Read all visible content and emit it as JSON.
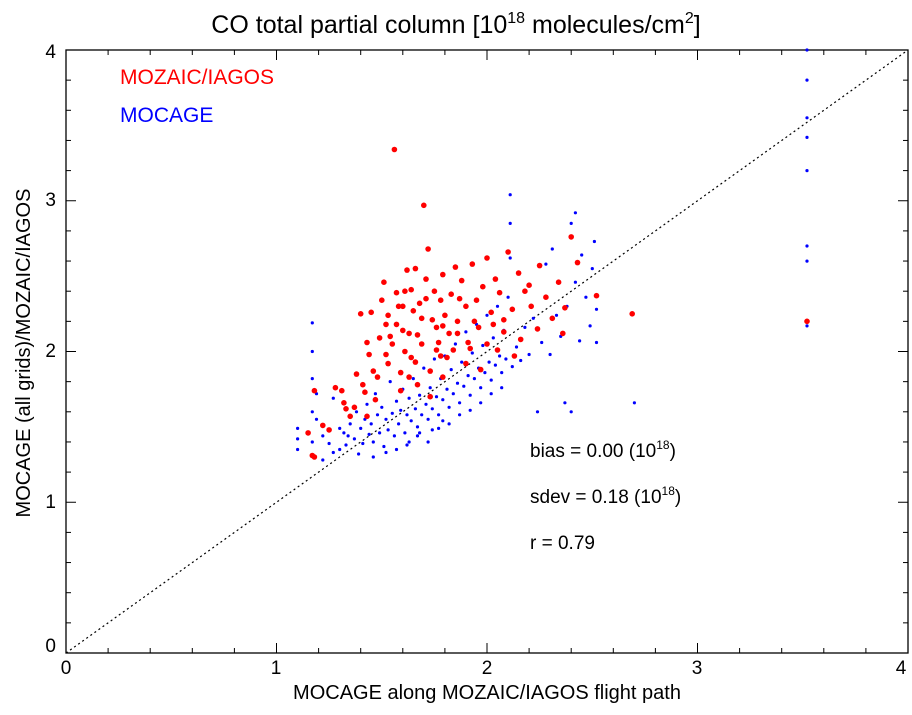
{
  "chart_data": {
    "type": "scatter",
    "title": {
      "prefix": "CO total partial column [10",
      "sup1": "18",
      "middle": " molecules/cm",
      "sup2": "2",
      "suffix": "]"
    },
    "xlabel": "MOCAGE along MOZAIC/IAGOS flight path",
    "ylabel": "MOCAGE (all grids)/MOZAIC/IAGOS",
    "xlim": [
      0,
      4
    ],
    "ylim": [
      0,
      4
    ],
    "xticks": [
      "0",
      "1",
      "2",
      "3",
      "4"
    ],
    "yticks": [
      "0",
      "1",
      "2",
      "3",
      "4"
    ],
    "grid": false,
    "legend_position": "top-left",
    "reference_line": "1:1 dotted diagonal",
    "colors": {
      "mozaic": "#ff0000",
      "mocage": "#0000ff",
      "axis": "#000000"
    },
    "legend": [
      {
        "label": "MOZAIC/IAGOS",
        "color": "#ff0000"
      },
      {
        "label": "MOCAGE",
        "color": "#0000ff"
      }
    ],
    "annotations": {
      "bias": {
        "text": "bias = 0.00 (10",
        "sup": "18",
        "close": ")"
      },
      "sdev": {
        "text": "sdev = 0.18 (10",
        "sup": "18",
        "close": ")"
      },
      "r": {
        "text": "r = 0.79"
      }
    },
    "series": [
      {
        "name": "MOZAIC/IAGOS",
        "color": "#ff0000",
        "marker": "filled-circle",
        "points": [
          [
            1.17,
            1.31
          ],
          [
            1.18,
            1.3
          ],
          [
            1.15,
            1.46
          ],
          [
            1.18,
            1.74
          ],
          [
            1.22,
            1.51
          ],
          [
            1.28,
            1.76
          ],
          [
            1.31,
            1.74
          ],
          [
            1.33,
            1.62
          ],
          [
            1.35,
            1.57
          ],
          [
            1.38,
            1.85
          ],
          [
            1.4,
            2.25
          ],
          [
            1.41,
            1.78
          ],
          [
            1.43,
            2.06
          ],
          [
            1.44,
            1.98
          ],
          [
            1.45,
            2.26
          ],
          [
            1.47,
            1.68
          ],
          [
            1.49,
            2.09
          ],
          [
            1.5,
            2.34
          ],
          [
            1.51,
            2.46
          ],
          [
            1.52,
            2.18
          ],
          [
            1.53,
            1.92
          ],
          [
            1.55,
            2.05
          ],
          [
            1.56,
            3.34
          ],
          [
            1.57,
            2.39
          ],
          [
            1.58,
            2.3
          ],
          [
            1.59,
            1.86
          ],
          [
            1.6,
            2.14
          ],
          [
            1.61,
            2.4
          ],
          [
            1.62,
            2.54
          ],
          [
            1.63,
            2.12
          ],
          [
            1.64,
            1.96
          ],
          [
            1.65,
            2.27
          ],
          [
            1.66,
            2.55
          ],
          [
            1.67,
            1.78
          ],
          [
            1.68,
            2.32
          ],
          [
            1.69,
            2.05
          ],
          [
            1.7,
            2.97
          ],
          [
            1.71,
            2.48
          ],
          [
            1.72,
            2.68
          ],
          [
            1.73,
            1.87
          ],
          [
            1.74,
            2.21
          ],
          [
            1.75,
            2.4
          ],
          [
            1.76,
            2.16
          ],
          [
            1.77,
            2.06
          ],
          [
            1.78,
            2.34
          ],
          [
            1.79,
            2.51
          ],
          [
            1.8,
            2.24
          ],
          [
            1.81,
            1.96
          ],
          [
            1.82,
            2.12
          ],
          [
            1.83,
            2.38
          ],
          [
            1.85,
            2.56
          ],
          [
            1.86,
            2.2
          ],
          [
            1.88,
            2.47
          ],
          [
            1.9,
            2.3
          ],
          [
            1.91,
            2.06
          ],
          [
            1.93,
            2.58
          ],
          [
            1.95,
            2.34
          ],
          [
            1.96,
            2.16
          ],
          [
            1.98,
            2.43
          ],
          [
            2.0,
            2.62
          ],
          [
            2.02,
            2.26
          ],
          [
            2.04,
            2.48
          ],
          [
            2.06,
            2.39
          ],
          [
            2.08,
            2.21
          ],
          [
            2.1,
            2.66
          ],
          [
            2.12,
            2.28
          ],
          [
            2.15,
            2.52
          ],
          [
            2.18,
            2.4
          ],
          [
            2.21,
            2.3
          ],
          [
            2.25,
            2.57
          ],
          [
            2.28,
            2.36
          ],
          [
            2.31,
            2.22
          ],
          [
            2.34,
            2.46
          ],
          [
            2.37,
            2.29
          ],
          [
            2.4,
            2.76
          ],
          [
            2.43,
            2.59
          ],
          [
            2.52,
            2.37
          ],
          [
            2.69,
            2.25
          ],
          [
            3.52,
            2.2
          ],
          [
            1.48,
            1.83
          ],
          [
            1.54,
            2.1
          ],
          [
            1.59,
            1.74
          ],
          [
            1.66,
            1.93
          ],
          [
            1.73,
            1.7
          ],
          [
            1.79,
            1.83
          ],
          [
            1.84,
            2.01
          ],
          [
            1.9,
            1.92
          ],
          [
            1.97,
            1.88
          ],
          [
            2.05,
            2.01
          ],
          [
            2.13,
            1.97
          ],
          [
            1.37,
            1.63
          ],
          [
            1.42,
            1.73
          ],
          [
            1.46,
            1.87
          ],
          [
            1.53,
            2.24
          ],
          [
            1.61,
            2.0
          ],
          [
            1.69,
            2.22
          ],
          [
            1.76,
            2.01
          ],
          [
            1.86,
            2.12
          ],
          [
            1.94,
            2.2
          ],
          [
            2.0,
            2.05
          ],
          [
            2.08,
            2.13
          ],
          [
            2.16,
            2.08
          ],
          [
            2.24,
            2.15
          ],
          [
            1.57,
            2.18
          ],
          [
            1.64,
            2.41
          ],
          [
            1.71,
            2.35
          ],
          [
            1.79,
            2.17
          ],
          [
            1.87,
            2.35
          ],
          [
            1.52,
            1.98
          ],
          [
            1.63,
            1.83
          ],
          [
            1.25,
            1.48
          ],
          [
            1.32,
            1.66
          ],
          [
            1.43,
            1.57
          ],
          [
            1.6,
            2.3
          ],
          [
            1.67,
            2.11
          ],
          [
            1.78,
            1.97
          ],
          [
            1.92,
            2.02
          ],
          [
            2.03,
            2.18
          ],
          [
            2.2,
            2.44
          ],
          [
            2.36,
            2.12
          ]
        ]
      },
      {
        "name": "MOCAGE",
        "color": "#0000ff",
        "marker": "small-dot",
        "points": [
          [
            1.1,
            1.35
          ],
          [
            1.1,
            1.42
          ],
          [
            1.1,
            1.49
          ],
          [
            1.17,
            1.4
          ],
          [
            1.17,
            1.6
          ],
          [
            1.17,
            1.82
          ],
          [
            1.17,
            2.0
          ],
          [
            1.17,
            2.19
          ],
          [
            1.19,
            1.55
          ],
          [
            1.19,
            1.72
          ],
          [
            1.22,
            1.28
          ],
          [
            1.22,
            1.44
          ],
          [
            1.25,
            1.39
          ],
          [
            1.27,
            1.33
          ],
          [
            1.27,
            1.69
          ],
          [
            1.3,
            1.35
          ],
          [
            1.32,
            1.46
          ],
          [
            1.33,
            1.38
          ],
          [
            1.35,
            1.52
          ],
          [
            1.37,
            1.42
          ],
          [
            1.38,
            1.6
          ],
          [
            1.4,
            1.49
          ],
          [
            1.41,
            1.39
          ],
          [
            1.42,
            1.55
          ],
          [
            1.43,
            1.65
          ],
          [
            1.44,
            1.45
          ],
          [
            1.45,
            1.52
          ],
          [
            1.46,
            1.4
          ],
          [
            1.47,
            1.72
          ],
          [
            1.48,
            1.58
          ],
          [
            1.49,
            1.46
          ],
          [
            1.5,
            1.63
          ],
          [
            1.51,
            1.37
          ],
          [
            1.52,
            1.55
          ],
          [
            1.53,
            1.48
          ],
          [
            1.54,
            1.8
          ],
          [
            1.55,
            1.59
          ],
          [
            1.56,
            1.44
          ],
          [
            1.57,
            1.67
          ],
          [
            1.58,
            1.52
          ],
          [
            1.59,
            1.61
          ],
          [
            1.6,
            1.75
          ],
          [
            1.61,
            1.46
          ],
          [
            1.62,
            1.58
          ],
          [
            1.63,
            1.69
          ],
          [
            1.64,
            1.54
          ],
          [
            1.65,
            1.82
          ],
          [
            1.66,
            1.62
          ],
          [
            1.67,
            1.5
          ],
          [
            1.68,
            1.71
          ],
          [
            1.69,
            1.58
          ],
          [
            1.7,
            1.89
          ],
          [
            1.71,
            1.65
          ],
          [
            1.72,
            1.55
          ],
          [
            1.73,
            1.76
          ],
          [
            1.74,
            1.62
          ],
          [
            1.75,
            1.95
          ],
          [
            1.76,
            1.7
          ],
          [
            1.77,
            1.58
          ],
          [
            1.78,
            1.82
          ],
          [
            1.79,
            1.68
          ],
          [
            1.8,
            1.97
          ],
          [
            1.81,
            1.75
          ],
          [
            1.82,
            1.63
          ],
          [
            1.83,
            1.88
          ],
          [
            1.84,
            1.72
          ],
          [
            1.85,
            2.05
          ],
          [
            1.86,
            1.79
          ],
          [
            1.87,
            1.66
          ],
          [
            1.88,
            1.93
          ],
          [
            1.89,
            1.77
          ],
          [
            1.9,
            2.13
          ],
          [
            1.91,
            1.84
          ],
          [
            1.92,
            1.71
          ],
          [
            1.93,
            1.99
          ],
          [
            1.94,
            1.82
          ],
          [
            1.95,
            2.18
          ],
          [
            1.96,
            1.89
          ],
          [
            1.97,
            1.76
          ],
          [
            1.98,
            2.04
          ],
          [
            1.99,
            1.86
          ],
          [
            2.0,
            2.24
          ],
          [
            2.01,
            1.93
          ],
          [
            2.02,
            1.81
          ],
          [
            2.03,
            2.09
          ],
          [
            2.04,
            1.91
          ],
          [
            2.05,
            2.3
          ],
          [
            2.06,
            1.97
          ],
          [
            2.07,
            1.86
          ],
          [
            2.08,
            2.14
          ],
          [
            2.09,
            1.95
          ],
          [
            2.1,
            2.36
          ],
          [
            2.11,
            3.04
          ],
          [
            2.11,
            2.85
          ],
          [
            2.11,
            2.62
          ],
          [
            2.12,
            1.9
          ],
          [
            2.14,
            2.03
          ],
          [
            2.16,
            1.94
          ],
          [
            2.18,
            2.16
          ],
          [
            2.2,
            1.98
          ],
          [
            2.22,
            2.22
          ],
          [
            2.24,
            1.6
          ],
          [
            2.26,
            2.06
          ],
          [
            2.28,
            2.58
          ],
          [
            2.3,
            1.98
          ],
          [
            2.31,
            2.68
          ],
          [
            2.33,
            2.24
          ],
          [
            2.35,
            2.1
          ],
          [
            2.37,
            1.66
          ],
          [
            2.38,
            2.3
          ],
          [
            2.4,
            1.6
          ],
          [
            2.4,
            2.85
          ],
          [
            2.42,
            2.46
          ],
          [
            2.42,
            2.92
          ],
          [
            2.44,
            2.07
          ],
          [
            2.45,
            2.64
          ],
          [
            2.47,
            2.36
          ],
          [
            2.49,
            2.17
          ],
          [
            2.5,
            2.55
          ],
          [
            2.51,
            2.73
          ],
          [
            2.52,
            2.28
          ],
          [
            2.52,
            2.06
          ],
          [
            2.7,
            1.66
          ],
          [
            3.52,
            4.0
          ],
          [
            3.52,
            3.8
          ],
          [
            3.52,
            3.55
          ],
          [
            3.52,
            3.42
          ],
          [
            3.52,
            3.2
          ],
          [
            3.52,
            2.7
          ],
          [
            3.52,
            2.6
          ],
          [
            3.52,
            2.17
          ],
          [
            1.62,
            1.38
          ],
          [
            1.67,
            1.44
          ],
          [
            1.72,
            1.4
          ],
          [
            1.77,
            1.49
          ],
          [
            1.82,
            1.52
          ],
          [
            1.87,
            1.58
          ],
          [
            1.92,
            1.61
          ],
          [
            1.97,
            1.66
          ],
          [
            2.02,
            1.72
          ],
          [
            2.07,
            1.76
          ],
          [
            1.3,
            1.49
          ],
          [
            1.34,
            1.44
          ],
          [
            1.39,
            1.32
          ],
          [
            1.46,
            1.3
          ],
          [
            1.52,
            1.33
          ],
          [
            1.57,
            1.35
          ],
          [
            1.63,
            1.4
          ],
          [
            1.68,
            1.46
          ],
          [
            1.74,
            1.48
          ],
          [
            1.79,
            1.54
          ]
        ]
      }
    ]
  }
}
